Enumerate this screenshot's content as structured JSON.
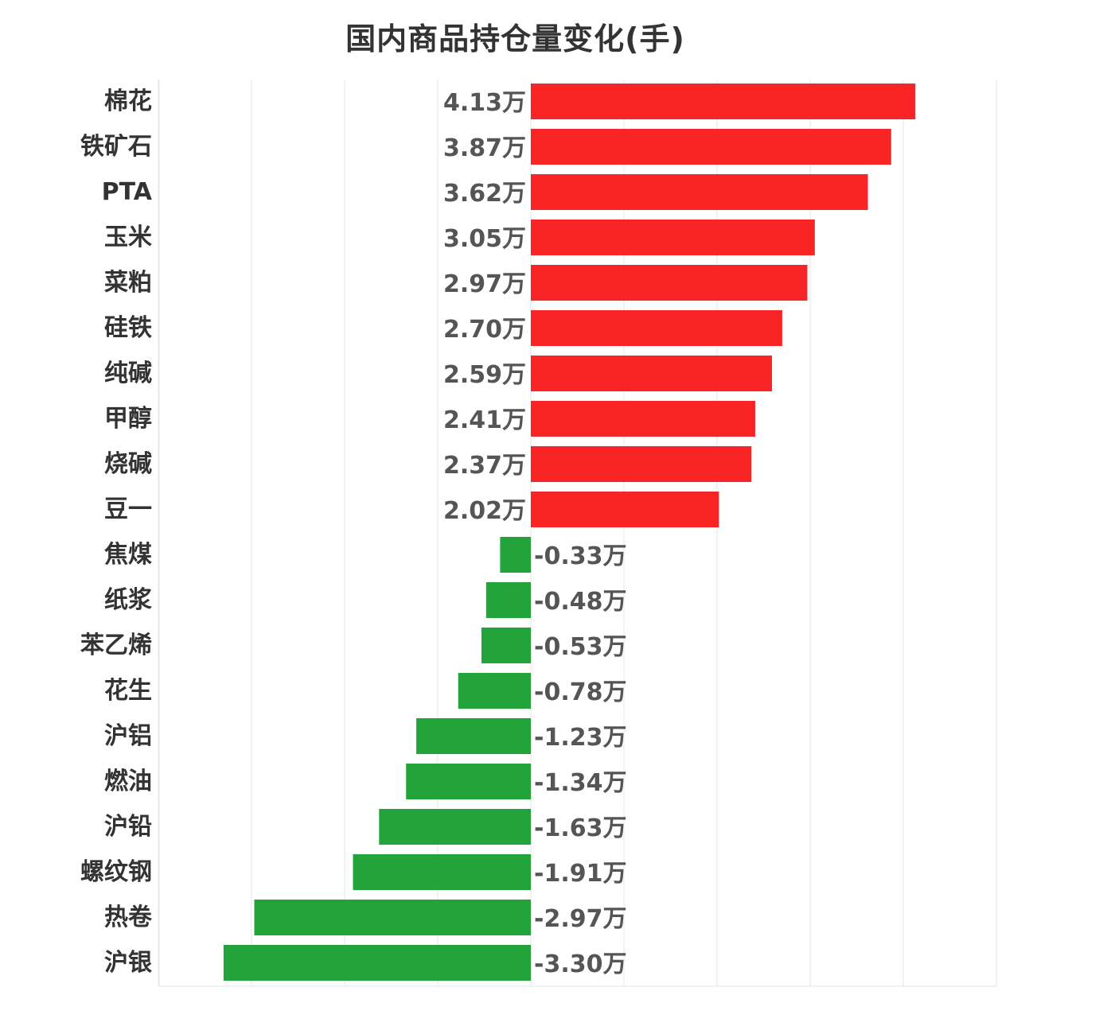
{
  "chart_data": {
    "type": "bar",
    "orientation": "horizontal",
    "title": "国内商品持仓量变化(手)",
    "xlabel": "",
    "ylabel": "",
    "unit_suffix": "万",
    "xlim": [
      -4,
      5
    ],
    "grid": true,
    "legend": "none",
    "categories": [
      "棉花",
      "铁矿石",
      "PTA",
      "玉米",
      "菜粕",
      "硅铁",
      "纯碱",
      "甲醇",
      "烧碱",
      "豆一",
      "焦煤",
      "纸浆",
      "苯乙烯",
      "花生",
      "沪铝",
      "燃油",
      "沪铅",
      "螺纹钢",
      "热卷",
      "沪银"
    ],
    "values": [
      4.13,
      3.87,
      3.62,
      3.05,
      2.97,
      2.7,
      2.59,
      2.41,
      2.37,
      2.02,
      -0.33,
      -0.48,
      -0.53,
      -0.78,
      -1.23,
      -1.34,
      -1.63,
      -1.91,
      -2.97,
      -3.3
    ],
    "value_labels": [
      "4.13万",
      "3.87万",
      "3.62万",
      "3.05万",
      "2.97万",
      "2.70万",
      "2.59万",
      "2.41万",
      "2.37万",
      "2.02万",
      "-0.33万",
      "-0.48万",
      "-0.53万",
      "-0.78万",
      "-1.23万",
      "-1.34万",
      "-1.63万",
      "-1.91万",
      "-2.97万",
      "-3.30万"
    ],
    "colors": {
      "positive": "#f82425",
      "negative": "#22a43a",
      "grid": "#e6e6e6"
    }
  }
}
